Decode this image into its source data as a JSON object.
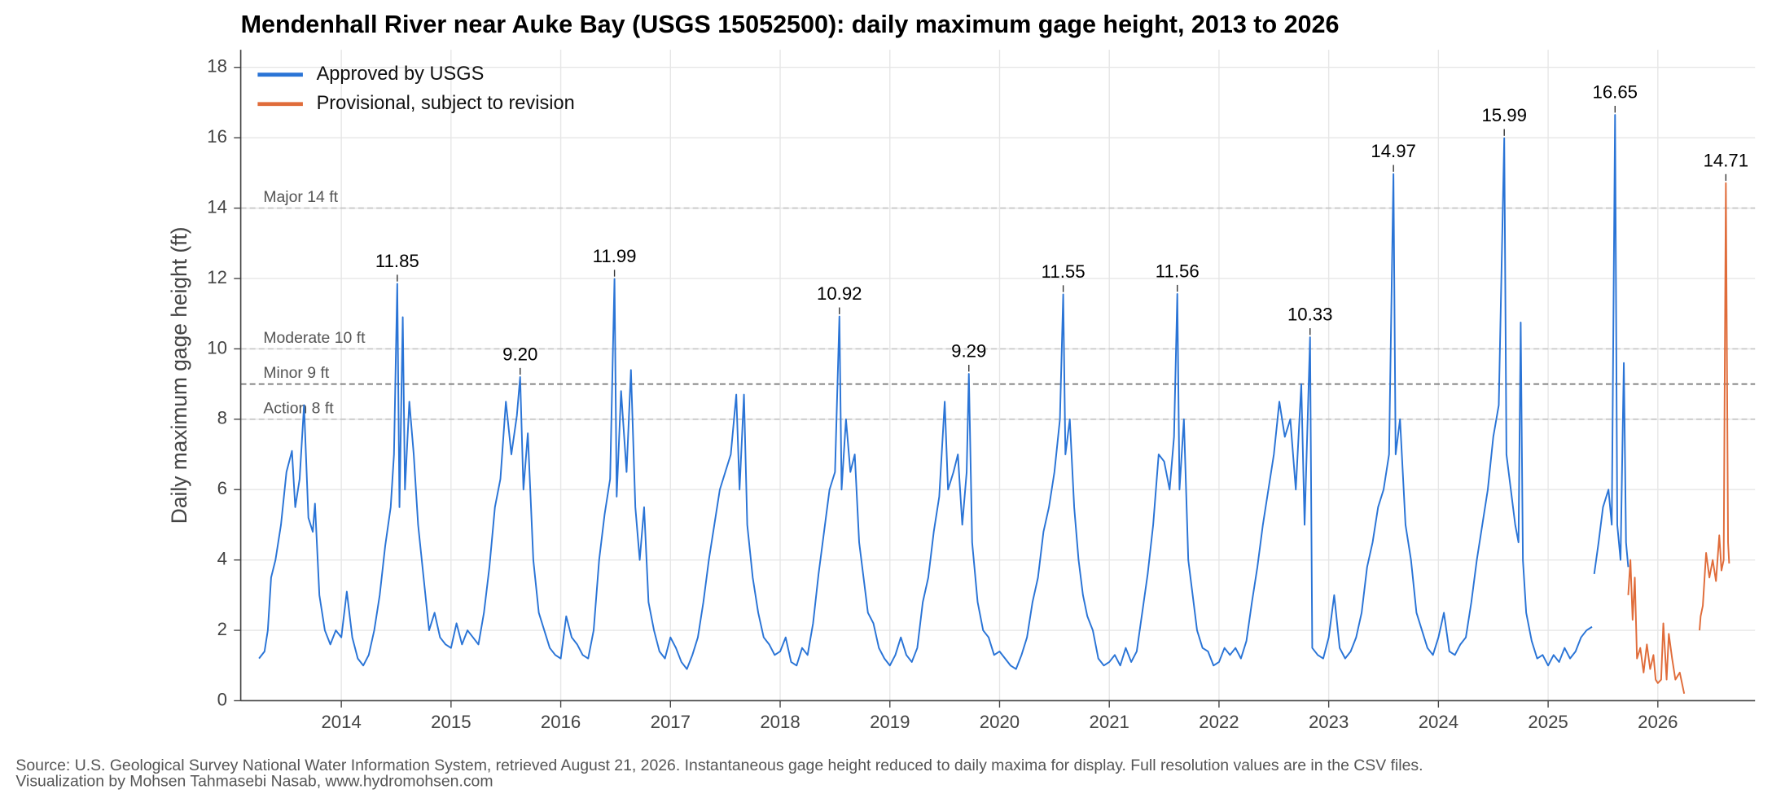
{
  "chart_data": {
    "type": "line",
    "title": "Mendenhall River near Auke Bay (USGS 15052500): daily maximum gage height, 2013 to 2026",
    "y_label": "Daily maximum gage height (ft)",
    "source": [
      "Source: U.S. Geological Survey National Water Information System, retrieved August 21, 2026. Instantaneous gage height reduced to daily maxima for display. Full resolution values are in the CSV files.",
      "Visualization by Mohsen Tahmasebi Nasab, www.hydromohsen.com"
    ],
    "xlim": [
      2013.083,
      2026.886
    ],
    "xticks": [
      2014,
      2015,
      2016,
      2017,
      2018,
      2019,
      2020,
      2021,
      2022,
      2023,
      2024,
      2025,
      2026
    ],
    "ylim": [
      0,
      18.5
    ],
    "yticks": [
      0,
      2,
      4,
      6,
      8,
      10,
      12,
      14,
      16,
      18
    ],
    "grid": true,
    "legend": "upper left",
    "thresholds": [
      {
        "value": 14,
        "label": "Major 14 ft"
      },
      {
        "value": 10,
        "label": "Moderate 10 ft"
      },
      {
        "value": 9,
        "label": "Minor 9 ft"
      },
      {
        "value": 8,
        "label": "Action 8 ft"
      }
    ],
    "annotations": [
      {
        "x": 2014.51,
        "value": 11.85,
        "label": "11.85"
      },
      {
        "x": 2015.63,
        "value": 9.2,
        "label": "9.20"
      },
      {
        "x": 2016.49,
        "value": 11.99,
        "label": "11.99"
      },
      {
        "x": 2018.54,
        "value": 10.92,
        "label": "10.92"
      },
      {
        "x": 2019.72,
        "value": 9.29,
        "label": "9.29"
      },
      {
        "x": 2020.58,
        "value": 11.55,
        "label": "11.55"
      },
      {
        "x": 2021.62,
        "value": 11.56,
        "label": "11.56"
      },
      {
        "x": 2022.83,
        "value": 10.33,
        "label": "10.33"
      },
      {
        "x": 2023.59,
        "value": 14.97,
        "label": "14.97"
      },
      {
        "x": 2024.6,
        "value": 15.99,
        "label": "15.99"
      },
      {
        "x": 2025.61,
        "value": 16.65,
        "label": "16.65"
      },
      {
        "x": 2026.62,
        "value": 14.71,
        "label": "14.71"
      }
    ],
    "series": [
      {
        "name": "Approved by USGS",
        "color": "#2a74d6",
        "x": [
          2013.25,
          2013.3,
          2013.33,
          2013.36,
          2013.4,
          2013.45,
          2013.5,
          2013.55,
          2013.58,
          2013.62,
          2013.66,
          2013.7,
          2013.74,
          2013.76,
          2013.8,
          2013.85,
          2013.9,
          2013.95,
          2014.0,
          2014.05,
          2014.1,
          2014.15,
          2014.2,
          2014.25,
          2014.3,
          2014.35,
          2014.4,
          2014.45,
          2014.48,
          2014.51,
          2014.53,
          2014.56,
          2014.58,
          2014.62,
          2014.66,
          2014.7,
          2014.75,
          2014.8,
          2014.85,
          2014.9,
          2014.95,
          2015.0,
          2015.05,
          2015.1,
          2015.15,
          2015.2,
          2015.25,
          2015.3,
          2015.35,
          2015.4,
          2015.45,
          2015.5,
          2015.55,
          2015.6,
          2015.63,
          2015.66,
          2015.7,
          2015.75,
          2015.8,
          2015.85,
          2015.9,
          2015.95,
          2016.0,
          2016.05,
          2016.1,
          2016.15,
          2016.2,
          2016.25,
          2016.3,
          2016.35,
          2016.4,
          2016.45,
          2016.49,
          2016.51,
          2016.55,
          2016.6,
          2016.64,
          2016.68,
          2016.72,
          2016.76,
          2016.8,
          2016.85,
          2016.9,
          2016.95,
          2017.0,
          2017.05,
          2017.1,
          2017.15,
          2017.2,
          2017.25,
          2017.3,
          2017.35,
          2017.4,
          2017.45,
          2017.5,
          2017.55,
          2017.6,
          2017.63,
          2017.67,
          2017.7,
          2017.75,
          2017.8,
          2017.85,
          2017.9,
          2017.95,
          2018.0,
          2018.05,
          2018.1,
          2018.15,
          2018.2,
          2018.25,
          2018.3,
          2018.35,
          2018.4,
          2018.45,
          2018.5,
          2018.54,
          2018.56,
          2018.6,
          2018.64,
          2018.68,
          2018.72,
          2018.76,
          2018.8,
          2018.85,
          2018.9,
          2018.95,
          2019.0,
          2019.05,
          2019.1,
          2019.15,
          2019.2,
          2019.25,
          2019.3,
          2019.35,
          2019.4,
          2019.45,
          2019.5,
          2019.53,
          2019.58,
          2019.62,
          2019.66,
          2019.7,
          2019.72,
          2019.75,
          2019.8,
          2019.85,
          2019.9,
          2019.95,
          2020.0,
          2020.05,
          2020.1,
          2020.15,
          2020.2,
          2020.25,
          2020.3,
          2020.35,
          2020.4,
          2020.45,
          2020.5,
          2020.55,
          2020.58,
          2020.6,
          2020.64,
          2020.68,
          2020.72,
          2020.76,
          2020.8,
          2020.85,
          2020.9,
          2020.95,
          2021.0,
          2021.05,
          2021.1,
          2021.15,
          2021.2,
          2021.25,
          2021.3,
          2021.35,
          2021.4,
          2021.45,
          2021.5,
          2021.55,
          2021.59,
          2021.62,
          2021.64,
          2021.68,
          2021.72,
          2021.76,
          2021.8,
          2021.85,
          2021.9,
          2021.95,
          2022.0,
          2022.05,
          2022.1,
          2022.15,
          2022.2,
          2022.25,
          2022.3,
          2022.35,
          2022.4,
          2022.45,
          2022.5,
          2022.55,
          2022.6,
          2022.65,
          2022.7,
          2022.75,
          2022.78,
          2022.83,
          2022.85,
          2022.9,
          2022.95,
          2023.0,
          2023.05,
          2023.1,
          2023.15,
          2023.2,
          2023.25,
          2023.3,
          2023.35,
          2023.4,
          2023.45,
          2023.5,
          2023.55,
          2023.59,
          2023.61,
          2023.65,
          2023.7,
          2023.75,
          2023.8,
          2023.85,
          2023.9,
          2023.95,
          2024.0,
          2024.05,
          2024.1,
          2024.15,
          2024.2,
          2024.25,
          2024.3,
          2024.35,
          2024.4,
          2024.45,
          2024.5,
          2024.55,
          2024.6,
          2024.62,
          2024.66,
          2024.7,
          2024.73,
          2024.75,
          2024.77,
          2024.8,
          2024.85,
          2024.9,
          2024.95,
          2025.0,
          2025.05,
          2025.1,
          2025.15,
          2025.2,
          2025.25,
          2025.3,
          2025.35,
          2025.4,
          2025.41,
          2025.42,
          2025.46,
          2025.5,
          2025.55,
          2025.58,
          2025.61,
          2025.63,
          2025.66,
          2025.69,
          2025.71,
          2025.73
        ],
        "values": [
          1.2,
          1.4,
          2.0,
          3.5,
          4.0,
          5.0,
          6.5,
          7.1,
          5.5,
          6.3,
          8.4,
          5.2,
          4.8,
          5.6,
          3.0,
          2.0,
          1.6,
          2.0,
          1.8,
          3.1,
          1.8,
          1.2,
          1.0,
          1.3,
          2.0,
          3.0,
          4.4,
          5.5,
          7.0,
          11.85,
          5.5,
          10.9,
          6.0,
          8.5,
          7.0,
          5.0,
          3.5,
          2.0,
          2.5,
          1.8,
          1.6,
          1.5,
          2.2,
          1.6,
          2.0,
          1.8,
          1.6,
          2.5,
          3.8,
          5.5,
          6.3,
          8.5,
          7.0,
          8.1,
          9.2,
          6.0,
          7.6,
          4.0,
          2.5,
          2.0,
          1.5,
          1.3,
          1.2,
          2.4,
          1.8,
          1.6,
          1.3,
          1.2,
          2.0,
          4.0,
          5.3,
          6.3,
          11.99,
          5.8,
          8.8,
          6.5,
          9.4,
          5.5,
          4.0,
          5.5,
          2.8,
          2.0,
          1.4,
          1.2,
          1.8,
          1.5,
          1.1,
          0.9,
          1.3,
          1.8,
          2.8,
          4.0,
          5.0,
          6.0,
          6.5,
          7.0,
          8.7,
          6.0,
          8.7,
          5.0,
          3.5,
          2.5,
          1.8,
          1.6,
          1.3,
          1.4,
          1.8,
          1.1,
          1.0,
          1.5,
          1.3,
          2.2,
          3.6,
          4.8,
          6.0,
          6.5,
          10.92,
          6.0,
          8.0,
          6.5,
          7.0,
          4.5,
          3.5,
          2.5,
          2.2,
          1.5,
          1.2,
          1.0,
          1.3,
          1.8,
          1.3,
          1.1,
          1.5,
          2.8,
          3.5,
          4.8,
          5.8,
          8.5,
          6.0,
          6.5,
          7.0,
          5.0,
          6.5,
          9.29,
          4.5,
          2.8,
          2.0,
          1.8,
          1.3,
          1.4,
          1.2,
          1.0,
          0.9,
          1.3,
          1.8,
          2.8,
          3.5,
          4.8,
          5.5,
          6.5,
          8.0,
          11.55,
          7.0,
          8.0,
          5.5,
          4.0,
          3.0,
          2.4,
          2.0,
          1.2,
          1.0,
          1.1,
          1.3,
          1.0,
          1.5,
          1.1,
          1.4,
          2.5,
          3.6,
          5.0,
          7.0,
          6.8,
          6.0,
          7.5,
          11.56,
          6.0,
          8.0,
          4.0,
          3.0,
          2.0,
          1.5,
          1.4,
          1.0,
          1.1,
          1.5,
          1.3,
          1.5,
          1.2,
          1.7,
          2.8,
          3.8,
          5.0,
          6.0,
          7.0,
          8.5,
          7.5,
          8.0,
          6.0,
          9.0,
          5.0,
          10.33,
          1.5,
          1.3,
          1.2,
          1.8,
          3.0,
          1.5,
          1.2,
          1.4,
          1.8,
          2.5,
          3.8,
          4.5,
          5.5,
          6.0,
          7.0,
          14.97,
          7.0,
          8.0,
          5.0,
          4.0,
          2.5,
          2.0,
          1.5,
          1.3,
          1.8,
          2.5,
          1.4,
          1.3,
          1.6,
          1.8,
          2.8,
          4.0,
          5.0,
          6.0,
          7.5,
          8.4,
          15.99,
          7.0,
          6.0,
          5.0,
          4.5,
          10.75,
          4.0,
          2.5,
          1.7,
          1.2,
          1.3,
          1.0,
          1.3,
          1.1,
          1.5,
          1.2,
          1.4,
          1.8,
          2.0,
          2.1,
          null,
          3.6,
          4.5,
          5.5,
          6.0,
          5.0,
          16.65,
          5.0,
          4.0,
          9.6,
          4.5,
          3.8
        ]
      },
      {
        "name": "Provisional, subject to revision",
        "color": "#e06c3a",
        "x": [
          2025.73,
          2025.75,
          2025.77,
          2025.79,
          2025.81,
          2025.84,
          2025.87,
          2025.9,
          2025.93,
          2025.96,
          2025.98,
          2026.0,
          2026.03,
          2026.05,
          2026.08,
          2026.1,
          2026.13,
          2026.16,
          2026.2,
          2026.24,
          2026.3,
          2026.38,
          2026.39,
          2026.41,
          2026.44,
          2026.47,
          2026.5,
          2026.53,
          2026.56,
          2026.58,
          2026.6,
          2026.62,
          2026.64,
          2026.65
        ],
        "values": [
          3.0,
          4.0,
          2.3,
          3.5,
          1.2,
          1.5,
          0.8,
          1.6,
          0.9,
          1.3,
          0.6,
          0.5,
          0.6,
          2.2,
          0.6,
          1.9,
          1.2,
          0.6,
          0.8,
          0.2,
          null,
          2.0,
          2.4,
          2.7,
          4.2,
          3.5,
          4.0,
          3.4,
          4.7,
          3.7,
          4.0,
          14.71,
          4.5,
          3.9
        ]
      }
    ]
  }
}
